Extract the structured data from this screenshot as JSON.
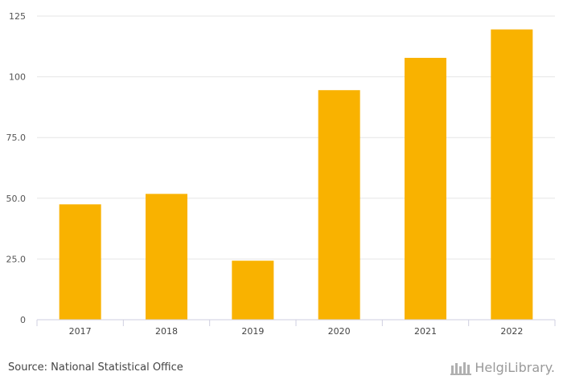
{
  "chart_data": {
    "type": "bar",
    "categories": [
      "2017",
      "2018",
      "2019",
      "2020",
      "2021",
      "2022"
    ],
    "values": [
      47.5,
      51.8,
      24.3,
      94.5,
      107.8,
      119.5
    ],
    "title": "",
    "xlabel": "",
    "ylabel": "",
    "ylim": [
      0,
      125
    ],
    "y_ticks": [
      0,
      25,
      50,
      75,
      100,
      125
    ],
    "y_tick_labels": [
      "0",
      "25.0",
      "50.0",
      "75.0",
      "100",
      "125"
    ],
    "grid": true,
    "bar_color": "#F9B200"
  },
  "footer": {
    "source": "Source: National Statistical Office",
    "logo_text": "HelgiLibrary."
  }
}
